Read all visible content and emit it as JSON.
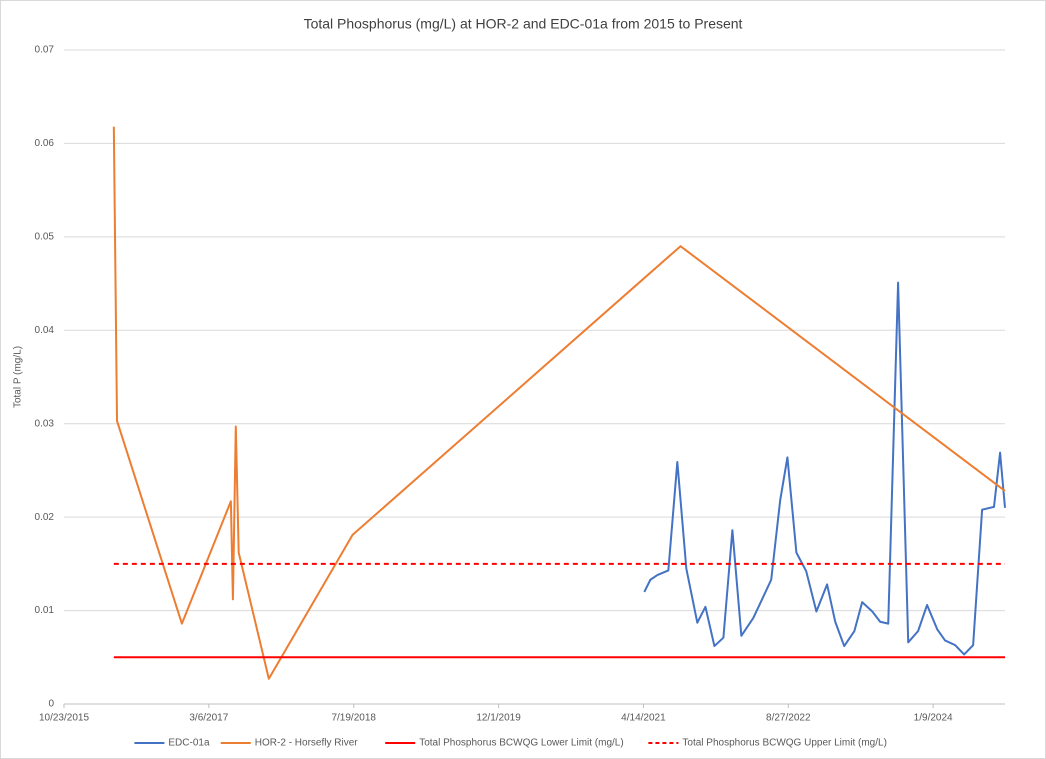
{
  "chart_data": {
    "type": "line",
    "title": "Total Phosphorus (mg/L) at HOR-2 and EDC-01a from 2015 to Present",
    "y_label": "Total P (mg/L)",
    "xlim": [
      "2015-10-23",
      "2024-09-13"
    ],
    "xticks": [
      {
        "value": "2015-10-23",
        "label": "10/23/2015"
      },
      {
        "value": "2017-03-06",
        "label": "3/6/2017"
      },
      {
        "value": "2018-07-19",
        "label": "7/19/2018"
      },
      {
        "value": "2019-12-01",
        "label": "12/1/2019"
      },
      {
        "value": "2021-04-14",
        "label": "4/14/2021"
      },
      {
        "value": "2022-08-27",
        "label": "8/27/2022"
      },
      {
        "value": "2024-01-09",
        "label": "1/9/2024"
      }
    ],
    "ylim": [
      0,
      0.07
    ],
    "yticks": [
      0,
      0.01,
      0.02,
      0.03,
      0.04,
      0.05,
      0.06,
      0.07
    ],
    "grid": true,
    "legend": "bottom",
    "series": [
      {
        "name": "EDC-01a",
        "color": "#4472c4",
        "x": [
          "2021-04-17",
          "2021-05-08",
          "2021-06-01",
          "2021-07-09",
          "2021-08-09",
          "2021-09-09",
          "2021-10-17",
          "2021-11-14",
          "2021-12-15",
          "2022-01-15",
          "2022-02-15",
          "2022-03-18",
          "2022-04-28",
          "2022-06-02",
          "2022-06-29",
          "2022-07-30",
          "2022-08-24",
          "2022-09-24",
          "2022-10-28",
          "2022-12-02",
          "2023-01-08",
          "2023-02-05",
          "2023-03-08",
          "2023-04-12",
          "2023-05-09",
          "2023-06-13",
          "2023-07-10",
          "2023-08-07",
          "2023-09-10",
          "2023-10-15",
          "2023-11-18",
          "2023-12-19",
          "2024-01-23",
          "2024-02-19",
          "2024-03-25",
          "2024-04-25",
          "2024-05-26",
          "2024-06-26",
          "2024-08-06",
          "2024-08-27",
          "2024-09-13"
        ],
        "values": [
          0.012,
          0.0133,
          0.0138,
          0.0143,
          0.0259,
          0.0145,
          0.0087,
          0.0104,
          0.0062,
          0.0071,
          0.0186,
          0.0073,
          0.0092,
          0.0115,
          0.0133,
          0.0218,
          0.0264,
          0.0162,
          0.0142,
          0.0099,
          0.0128,
          0.0088,
          0.0062,
          0.0078,
          0.0109,
          0.0099,
          0.0088,
          0.0086,
          0.0451,
          0.0066,
          0.0078,
          0.0106,
          0.008,
          0.0068,
          0.0063,
          0.0053,
          0.0063,
          0.0208,
          0.0211,
          0.0269,
          0.021
        ]
      },
      {
        "name": "HOR-2 - Horsefly River",
        "color": "#ed7d31",
        "x": [
          "2016-04-12",
          "2016-04-23",
          "2016-12-03",
          "2017-05-21",
          "2017-05-28",
          "2017-06-07",
          "2017-06-17",
          "2017-09-29",
          "2018-07-15",
          "2021-08-20",
          "2024-09-13"
        ],
        "values": [
          0.0618,
          0.0303,
          0.0086,
          0.0217,
          0.0112,
          0.0297,
          0.0162,
          0.0027,
          0.0181,
          0.049,
          0.0228
        ]
      },
      {
        "name": "Total Phosphorus BCWQG Lower Limit (mg/L)",
        "color": "#ff0000",
        "dashed": false,
        "x": [
          "2016-04-12",
          "2024-09-13"
        ],
        "values": [
          0.005,
          0.005
        ]
      },
      {
        "name": "Total Phosphorus BCWQG Upper Limit (mg/L)",
        "color": "#ff0000",
        "dashed": true,
        "x": [
          "2016-04-12",
          "2024-09-13"
        ],
        "values": [
          0.015,
          0.015
        ]
      }
    ]
  }
}
